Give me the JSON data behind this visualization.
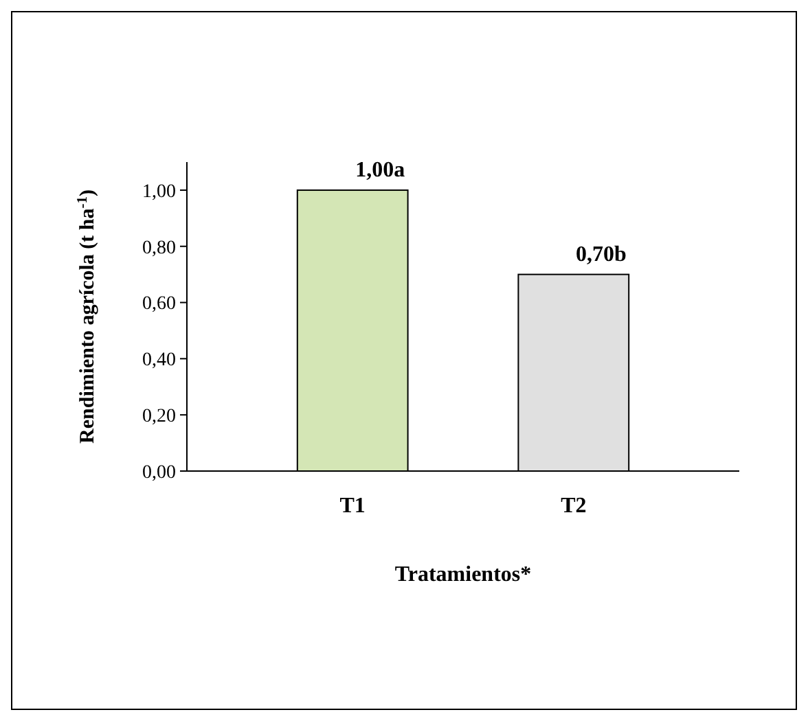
{
  "chart_data": {
    "type": "bar",
    "xlabel": "Tratamientos*",
    "ylabel": "Rendimiento agrícola (t ha$^{-1}$)",
    "categories": [
      "T1",
      "T2"
    ],
    "values": [
      1.0,
      0.7
    ],
    "colors": [
      "#d4e6b5",
      "#e0e0e0"
    ],
    "value_labels": [
      "1,00a",
      "0,70b"
    ],
    "ylim": [
      0,
      1.1
    ],
    "yticks": [
      {
        "value": 0,
        "label": "0,00"
      },
      {
        "value": 0.2,
        "label": "0,20"
      },
      {
        "value": 0.4,
        "label": "0,40"
      },
      {
        "value": 0.6,
        "label": "0,60"
      },
      {
        "value": 0.8,
        "label": "0,80"
      },
      {
        "value": 1,
        "label": "1,00"
      }
    ],
    "grid": false
  }
}
